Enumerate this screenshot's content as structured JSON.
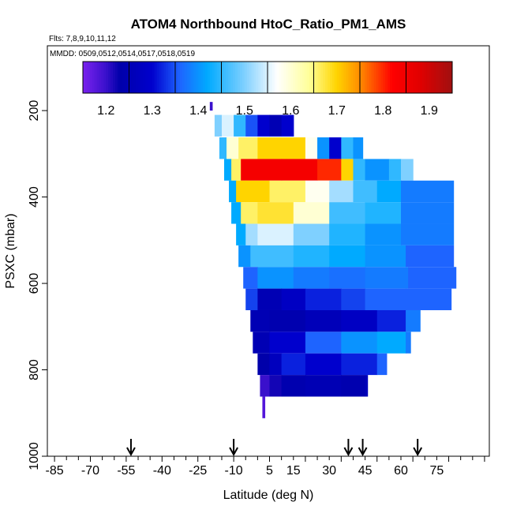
{
  "chart_data": {
    "type": "heatmap",
    "title": "ATOM4 Northbound HtoC_Ratio_PM1_AMS",
    "flights_label": "Flts: 7,8,9,10,11,12",
    "dates_label": "MMDD: 0509,0512,0514,0517,0518,0519",
    "xlabel": "Latitude (deg N)",
    "ylabel": "PSXC (mbar)",
    "xlim": [
      -88,
      97
    ],
    "ylim": [
      1000,
      50
    ],
    "x_ticks": [
      "-85",
      "-70",
      "-55",
      "-40",
      "-25",
      "-10",
      "5",
      "15",
      "30",
      "45",
      "60",
      "75"
    ],
    "x_tick_values": [
      -85,
      -70,
      -55,
      -40,
      -25,
      -10,
      5,
      15,
      30,
      45,
      60,
      75
    ],
    "y_ticks": [
      "200",
      "400",
      "600",
      "800",
      "1000"
    ],
    "y_tick_values": [
      200,
      400,
      600,
      800,
      1000
    ],
    "colorbar": {
      "range": [
        1.15,
        1.95
      ],
      "tick_labels": [
        "1.2",
        "1.3",
        "1.4",
        "1.5",
        "1.6",
        "1.7",
        "1.8",
        "1.9"
      ],
      "tick_values": [
        1.2,
        1.3,
        1.4,
        1.5,
        1.6,
        1.7,
        1.8,
        1.9
      ],
      "stops": [
        {
          "v": 1.15,
          "color": "#7a22ee"
        },
        {
          "v": 1.2,
          "color": "#3a10cc"
        },
        {
          "v": 1.23,
          "color": "#0000aa"
        },
        {
          "v": 1.3,
          "color": "#0000cd"
        },
        {
          "v": 1.36,
          "color": "#1e64ff"
        },
        {
          "v": 1.42,
          "color": "#00aaff"
        },
        {
          "v": 1.5,
          "color": "#7fd0ff"
        },
        {
          "v": 1.57,
          "color": "#ffffff"
        },
        {
          "v": 1.64,
          "color": "#ffff99"
        },
        {
          "v": 1.7,
          "color": "#ffd400"
        },
        {
          "v": 1.75,
          "color": "#ff8c00"
        },
        {
          "v": 1.82,
          "color": "#ff0000"
        },
        {
          "v": 1.88,
          "color": "#e10000"
        },
        {
          "v": 1.95,
          "color": "#a01010"
        }
      ]
    },
    "arrows_latitude": [
      -53,
      -10,
      38,
      44,
      67
    ],
    "bands": [
      {
        "p_top": 180,
        "p_bot": 200,
        "segments": [
          [
            -20,
            -19,
            1.2
          ]
        ]
      },
      {
        "p_top": 210,
        "p_bot": 260,
        "segments": [
          [
            -18,
            -15,
            1.5
          ],
          [
            -15,
            -10,
            1.55
          ],
          [
            -10,
            -5,
            1.45
          ],
          [
            -5,
            0,
            1.35
          ],
          [
            0,
            5,
            1.3
          ],
          [
            5,
            10,
            1.25
          ],
          [
            10,
            15,
            1.3
          ]
        ]
      },
      {
        "p_top": 262,
        "p_bot": 312,
        "segments": [
          [
            -16,
            -13,
            1.45
          ],
          [
            -13,
            -8,
            1.6
          ],
          [
            -8,
            0,
            1.66
          ],
          [
            0,
            12,
            1.7
          ],
          [
            12,
            20,
            1.7
          ],
          [
            20,
            25,
            1.58
          ],
          [
            25,
            30,
            1.4
          ],
          [
            30,
            35,
            1.3
          ],
          [
            35,
            40,
            1.45
          ],
          [
            40,
            44,
            1.4
          ]
        ]
      },
      {
        "p_top": 312,
        "p_bot": 362,
        "segments": [
          [
            -14,
            -11,
            1.42
          ],
          [
            -11,
            -7,
            1.66
          ],
          [
            -7,
            10,
            1.84
          ],
          [
            10,
            25,
            1.84
          ],
          [
            25,
            35,
            1.8
          ],
          [
            35,
            40,
            1.7
          ],
          [
            40,
            45,
            1.45
          ],
          [
            45,
            55,
            1.4
          ],
          [
            55,
            60,
            1.45
          ],
          [
            60,
            65,
            1.5
          ]
        ]
      },
      {
        "p_top": 362,
        "p_bot": 412,
        "segments": [
          [
            -12,
            -9,
            1.42
          ],
          [
            -9,
            -5,
            1.7
          ],
          [
            -5,
            5,
            1.7
          ],
          [
            5,
            20,
            1.66
          ],
          [
            20,
            30,
            1.58
          ],
          [
            30,
            40,
            1.52
          ],
          [
            40,
            50,
            1.46
          ],
          [
            50,
            60,
            1.42
          ],
          [
            60,
            82,
            1.38
          ]
        ]
      },
      {
        "p_top": 412,
        "p_bot": 462,
        "segments": [
          [
            -11,
            -7,
            1.42
          ],
          [
            -7,
            0,
            1.66
          ],
          [
            0,
            15,
            1.68
          ],
          [
            15,
            30,
            1.6
          ],
          [
            30,
            45,
            1.46
          ],
          [
            45,
            60,
            1.44
          ],
          [
            60,
            82,
            1.38
          ]
        ]
      },
      {
        "p_top": 462,
        "p_bot": 512,
        "segments": [
          [
            -9,
            -5,
            1.42
          ],
          [
            -5,
            0,
            1.52
          ],
          [
            0,
            15,
            1.55
          ],
          [
            15,
            30,
            1.5
          ],
          [
            30,
            45,
            1.44
          ],
          [
            45,
            60,
            1.4
          ],
          [
            60,
            82,
            1.38
          ]
        ]
      },
      {
        "p_top": 512,
        "p_bot": 562,
        "segments": [
          [
            -8,
            -3,
            1.4
          ],
          [
            -3,
            15,
            1.46
          ],
          [
            15,
            30,
            1.44
          ],
          [
            30,
            45,
            1.42
          ],
          [
            45,
            62,
            1.4
          ],
          [
            62,
            82,
            1.36
          ]
        ]
      },
      {
        "p_top": 562,
        "p_bot": 612,
        "segments": [
          [
            -6,
            0,
            1.36
          ],
          [
            0,
            15,
            1.4
          ],
          [
            15,
            30,
            1.38
          ],
          [
            30,
            45,
            1.37
          ],
          [
            45,
            63,
            1.38
          ],
          [
            63,
            83,
            1.36
          ]
        ]
      },
      {
        "p_top": 612,
        "p_bot": 662,
        "segments": [
          [
            -5,
            0,
            1.34
          ],
          [
            0,
            10,
            1.25
          ],
          [
            10,
            20,
            1.28
          ],
          [
            20,
            35,
            1.32
          ],
          [
            35,
            45,
            1.34
          ],
          [
            45,
            62,
            1.36
          ],
          [
            62,
            81,
            1.36
          ]
        ]
      },
      {
        "p_top": 662,
        "p_bot": 712,
        "segments": [
          [
            -3,
            5,
            1.25
          ],
          [
            5,
            20,
            1.24
          ],
          [
            20,
            35,
            1.26
          ],
          [
            35,
            50,
            1.28
          ],
          [
            50,
            62,
            1.32
          ],
          [
            62,
            68,
            1.38
          ]
        ]
      },
      {
        "p_top": 712,
        "p_bot": 762,
        "segments": [
          [
            -2,
            5,
            1.25
          ],
          [
            5,
            20,
            1.3
          ],
          [
            20,
            35,
            1.36
          ],
          [
            35,
            50,
            1.4
          ],
          [
            50,
            62,
            1.42
          ],
          [
            62,
            64,
            1.38
          ]
        ]
      },
      {
        "p_top": 762,
        "p_bot": 812,
        "segments": [
          [
            0,
            5,
            1.23
          ],
          [
            5,
            10,
            1.27
          ],
          [
            10,
            20,
            1.32
          ],
          [
            20,
            35,
            1.3
          ],
          [
            35,
            50,
            1.32
          ],
          [
            50,
            54,
            1.36
          ]
        ]
      },
      {
        "p_top": 812,
        "p_bot": 862,
        "segments": [
          [
            1,
            5,
            1.2
          ],
          [
            5,
            10,
            1.22
          ],
          [
            10,
            20,
            1.24
          ],
          [
            20,
            35,
            1.25
          ],
          [
            35,
            45,
            1.24
          ],
          [
            45,
            46,
            1.26
          ]
        ]
      },
      {
        "p_top": 862,
        "p_bot": 912,
        "segments": [
          [
            2,
            3,
            1.18
          ]
        ]
      }
    ]
  }
}
